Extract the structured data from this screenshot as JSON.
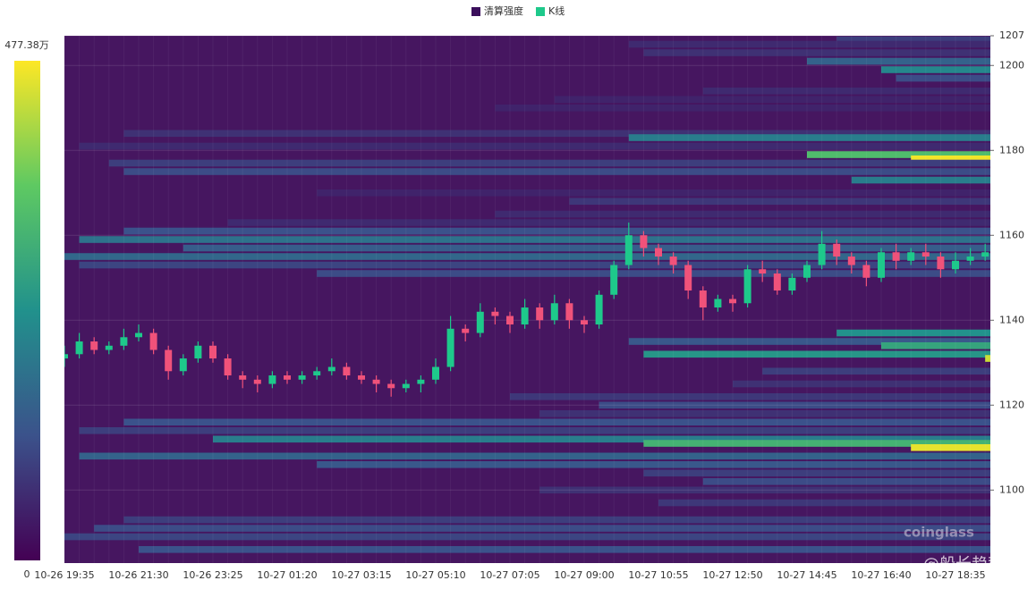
{
  "chart_data": {
    "type": "liquidation-heatmap",
    "legend": [
      {
        "name": "清算强度",
        "color": "#3b0f5c"
      },
      {
        "name": "K线",
        "color": "#1ec98b"
      }
    ],
    "colorscale": [
      "#440154",
      "#3b528b",
      "#21918c",
      "#5ec962",
      "#fde725"
    ],
    "background": "#461660",
    "clim": [
      0,
      477.38
    ],
    "cticks": [
      0,
      {
        "value": 477.38,
        "label": "477.38万"
      }
    ],
    "ylim": [
      1082.8,
      1207
    ],
    "yticks": [
      1100,
      1120,
      1140,
      1160,
      1180,
      1200,
      1207
    ],
    "grid": true,
    "watermark": "coinglass",
    "overlay_text": "@船长趋势",
    "categories": [
      "10-26 19:35",
      null,
      null,
      null,
      null,
      "10-26 21:30",
      null,
      null,
      null,
      null,
      "10-26 23:25",
      null,
      null,
      null,
      null,
      "10-27 01:20",
      null,
      null,
      null,
      null,
      "10-27 03:15",
      null,
      null,
      null,
      null,
      "10-27 05:10",
      null,
      null,
      null,
      null,
      "10-27 07:05",
      null,
      null,
      null,
      null,
      "10-27 09:00",
      null,
      null,
      null,
      null,
      "10-27 10:55",
      null,
      null,
      null,
      null,
      "10-27 12:50",
      null,
      null,
      null,
      null,
      "10-27 14:45",
      null,
      null,
      null,
      null,
      "10-27 16:40",
      null,
      null,
      null,
      null,
      "10-27 18:35",
      null,
      null
    ],
    "candles": {
      "up_color": "#1ec98b",
      "down_color": "#f0527a",
      "open": [
        1131,
        1132,
        1135,
        1133,
        1134,
        1136,
        1137,
        1133,
        1128,
        1131,
        1134,
        1131,
        1127,
        1126,
        1125,
        1127,
        1126,
        1127,
        1128,
        1129,
        1127,
        1126,
        1125,
        1124,
        1125,
        1126,
        1129,
        1138,
        1137,
        1142,
        1141,
        1139,
        1143,
        1140,
        1144,
        1140,
        1139,
        1146,
        1153,
        1160,
        1157,
        1155,
        1153,
        1147,
        1143,
        1145,
        1144,
        1152,
        1151,
        1147,
        1150,
        1153,
        1158,
        1155,
        1153,
        1150,
        1156,
        1154,
        1156,
        1155,
        1152,
        1154,
        1155
      ],
      "close": [
        1132,
        1135,
        1133,
        1134,
        1136,
        1137,
        1133,
        1128,
        1131,
        1134,
        1131,
        1127,
        1126,
        1125,
        1127,
        1126,
        1127,
        1128,
        1129,
        1127,
        1126,
        1125,
        1124,
        1125,
        1126,
        1129,
        1138,
        1137,
        1142,
        1141,
        1139,
        1143,
        1140,
        1144,
        1140,
        1139,
        1146,
        1153,
        1160,
        1157,
        1155,
        1153,
        1147,
        1143,
        1145,
        1144,
        1152,
        1151,
        1147,
        1150,
        1153,
        1158,
        1155,
        1153,
        1150,
        1156,
        1154,
        1156,
        1155,
        1152,
        1154,
        1155,
        1156
      ],
      "high": [
        1134,
        1137,
        1136,
        1135,
        1138,
        1139,
        1138,
        1134,
        1132,
        1135,
        1135,
        1132,
        1128,
        1127,
        1128,
        1128,
        1128,
        1129,
        1131,
        1130,
        1128,
        1127,
        1126,
        1126,
        1127,
        1131,
        1141,
        1139,
        1144,
        1143,
        1142,
        1145,
        1144,
        1146,
        1145,
        1141,
        1147,
        1154,
        1163,
        1161,
        1158,
        1156,
        1154,
        1148,
        1146,
        1146,
        1153,
        1154,
        1152,
        1151,
        1154,
        1161,
        1159,
        1156,
        1154,
        1157,
        1158,
        1157,
        1158,
        1156,
        1156,
        1157,
        1158
      ],
      "low": [
        1129,
        1131,
        1132,
        1132,
        1133,
        1135,
        1132,
        1126,
        1127,
        1130,
        1130,
        1126,
        1124,
        1123,
        1124,
        1125,
        1125,
        1126,
        1127,
        1126,
        1125,
        1123,
        1122,
        1123,
        1123,
        1125,
        1128,
        1135,
        1136,
        1139,
        1137,
        1138,
        1138,
        1139,
        1138,
        1137,
        1138,
        1145,
        1152,
        1155,
        1153,
        1151,
        1145,
        1140,
        1142,
        1142,
        1143,
        1149,
        1146,
        1146,
        1149,
        1152,
        1153,
        1151,
        1148,
        1149,
        1152,
        1153,
        1153,
        1150,
        1151,
        1153,
        1154
      ]
    },
    "heatmap": {
      "prices": [
        1206,
        1205,
        1203,
        1201,
        1199,
        1197,
        1194,
        1192,
        1190,
        1184,
        1183,
        1181,
        1179,
        1178,
        1177,
        1175,
        1173,
        1170,
        1168,
        1165,
        1163,
        1161,
        1159,
        1157,
        1155,
        1153,
        1151,
        1137,
        1135,
        1134,
        1132,
        1131,
        1128,
        1125,
        1122,
        1120,
        1118,
        1116,
        1114,
        1112,
        1111,
        1110,
        1108,
        1106,
        1104,
        1102,
        1100,
        1097,
        1093,
        1091,
        1089,
        1086
      ],
      "x_start": [
        52,
        38,
        39,
        50,
        55,
        56,
        43,
        33,
        29,
        4,
        38,
        1,
        50,
        57,
        3,
        4,
        53,
        17,
        34,
        29,
        11,
        4,
        1,
        8,
        0,
        1,
        17,
        52,
        38,
        55,
        39,
        62,
        47,
        45,
        30,
        36,
        32,
        4,
        1,
        10,
        39,
        57,
        1,
        17,
        39,
        43,
        32,
        40,
        4,
        2,
        0,
        5
      ],
      "values": [
        90,
        60,
        70,
        150,
        220,
        110,
        60,
        50,
        50,
        70,
        200,
        60,
        330,
        470,
        90,
        110,
        200,
        50,
        80,
        60,
        60,
        120,
        180,
        140,
        160,
        100,
        110,
        240,
        130,
        280,
        250,
        440,
        90,
        70,
        80,
        110,
        70,
        120,
        90,
        200,
        310,
        460,
        150,
        130,
        90,
        110,
        70,
        80,
        90,
        110,
        100,
        120
      ]
    }
  }
}
